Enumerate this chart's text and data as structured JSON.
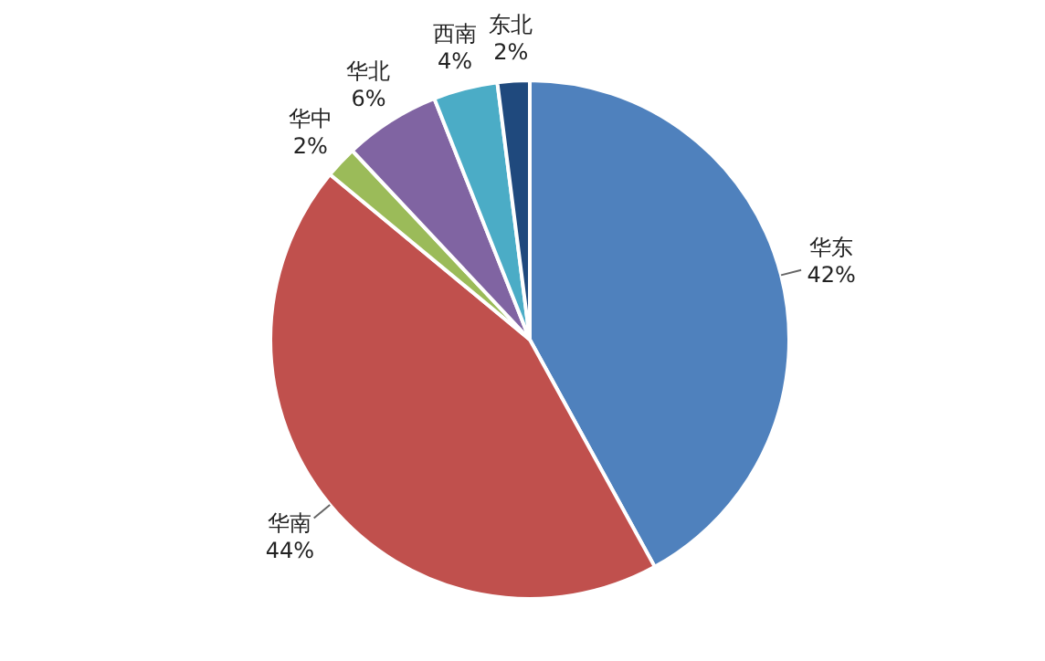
{
  "chart_data": {
    "type": "pie",
    "categories": [
      "华东",
      "华南",
      "华中",
      "华北",
      "西南",
      "东北"
    ],
    "values": [
      42,
      44,
      2,
      6,
      4,
      2
    ],
    "colors": [
      "#4f81bd",
      "#c0504d",
      "#9bbb59",
      "#8064a2",
      "#4bacc6",
      "#1f497d"
    ],
    "value_labels": [
      "42%",
      "44%",
      "2%",
      "6%",
      "4%",
      "2%"
    ],
    "legend": false
  }
}
